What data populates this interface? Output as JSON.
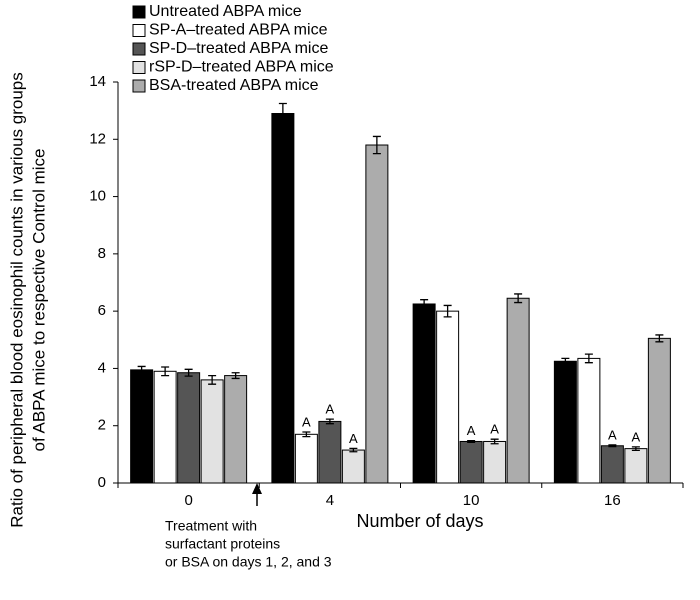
{
  "chart_data": {
    "type": "bar",
    "y_label": [
      "Ratio of peripheral blood eosinophil counts in various groups",
      "of ABPA mice to respective Control mice"
    ],
    "x_label": "Number of days",
    "categories": [
      "0",
      "4",
      "10",
      "16"
    ],
    "series": [
      {
        "name": "Untreated ABPA mice",
        "color": "#000000",
        "values": [
          3.95,
          12.9,
          6.25,
          4.25
        ],
        "errors": [
          0.12,
          0.35,
          0.15,
          0.1
        ]
      },
      {
        "name": "SP-A–treated ABPA mice",
        "color": "#ffffff",
        "values": [
          3.9,
          1.7,
          6.0,
          4.35
        ],
        "errors": [
          0.15,
          0.08,
          0.2,
          0.15
        ],
        "annotations": [
          null,
          "A",
          null,
          null
        ]
      },
      {
        "name": "SP-D–treated ABPA mice",
        "color": "#555555",
        "values": [
          3.85,
          2.15,
          1.45,
          1.3
        ],
        "errors": [
          0.12,
          0.08,
          0.03,
          0.03
        ],
        "annotations": [
          null,
          "A",
          "A",
          "A"
        ]
      },
      {
        "name": "rSP-D–treated ABPA mice",
        "color": "#e2e2e2",
        "values": [
          3.6,
          1.15,
          1.45,
          1.2
        ],
        "errors": [
          0.15,
          0.06,
          0.08,
          0.06
        ],
        "annotations": [
          null,
          "A",
          "A",
          "A"
        ]
      },
      {
        "name": "BSA-treated ABPA mice",
        "color": "#acacac",
        "values": [
          3.75,
          11.8,
          6.45,
          5.05
        ],
        "errors": [
          0.1,
          0.3,
          0.15,
          0.12
        ]
      }
    ],
    "ylim": [
      0,
      14
    ],
    "yticks": [
      0,
      2,
      4,
      6,
      8,
      10,
      12,
      14
    ],
    "treatment_note": [
      "Treatment with",
      "surfactant proteins",
      "or BSA on days 1, 2, and 3"
    ]
  }
}
